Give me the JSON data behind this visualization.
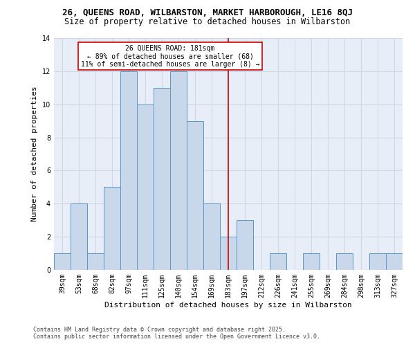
{
  "title1": "26, QUEENS ROAD, WILBARSTON, MARKET HARBOROUGH, LE16 8QJ",
  "title2": "Size of property relative to detached houses in Wilbarston",
  "xlabel": "Distribution of detached houses by size in Wilbarston",
  "ylabel": "Number of detached properties",
  "categories": [
    "39sqm",
    "53sqm",
    "68sqm",
    "82sqm",
    "97sqm",
    "111sqm",
    "125sqm",
    "140sqm",
    "154sqm",
    "169sqm",
    "183sqm",
    "197sqm",
    "212sqm",
    "226sqm",
    "241sqm",
    "255sqm",
    "269sqm",
    "284sqm",
    "298sqm",
    "313sqm",
    "327sqm"
  ],
  "values": [
    1,
    4,
    1,
    5,
    12,
    10,
    11,
    12,
    9,
    4,
    2,
    3,
    0,
    1,
    0,
    1,
    0,
    1,
    0,
    1,
    1
  ],
  "bar_color": "#c8d8ea",
  "bar_edge_color": "#5b96c8",
  "bar_linewidth": 0.7,
  "vline_color": "#cc0000",
  "vline_linewidth": 1.2,
  "vline_index": 10,
  "annotation_title": "26 QUEENS ROAD: 181sqm",
  "annotation_line1": "← 89% of detached houses are smaller (68)",
  "annotation_line2": "11% of semi-detached houses are larger (8) →",
  "annotation_box_color": "#cc0000",
  "annotation_bg": "#ffffff",
  "ylim": [
    0,
    14
  ],
  "yticks": [
    0,
    2,
    4,
    6,
    8,
    10,
    12,
    14
  ],
  "grid_color": "#d0d8e8",
  "bg_color": "#e8eef8",
  "footer1": "Contains HM Land Registry data © Crown copyright and database right 2025.",
  "footer2": "Contains public sector information licensed under the Open Government Licence v3.0.",
  "title1_fontsize": 9,
  "title2_fontsize": 8.5,
  "xlabel_fontsize": 8,
  "ylabel_fontsize": 8,
  "tick_fontsize": 7,
  "annotation_fontsize": 7,
  "footer_fontsize": 6
}
